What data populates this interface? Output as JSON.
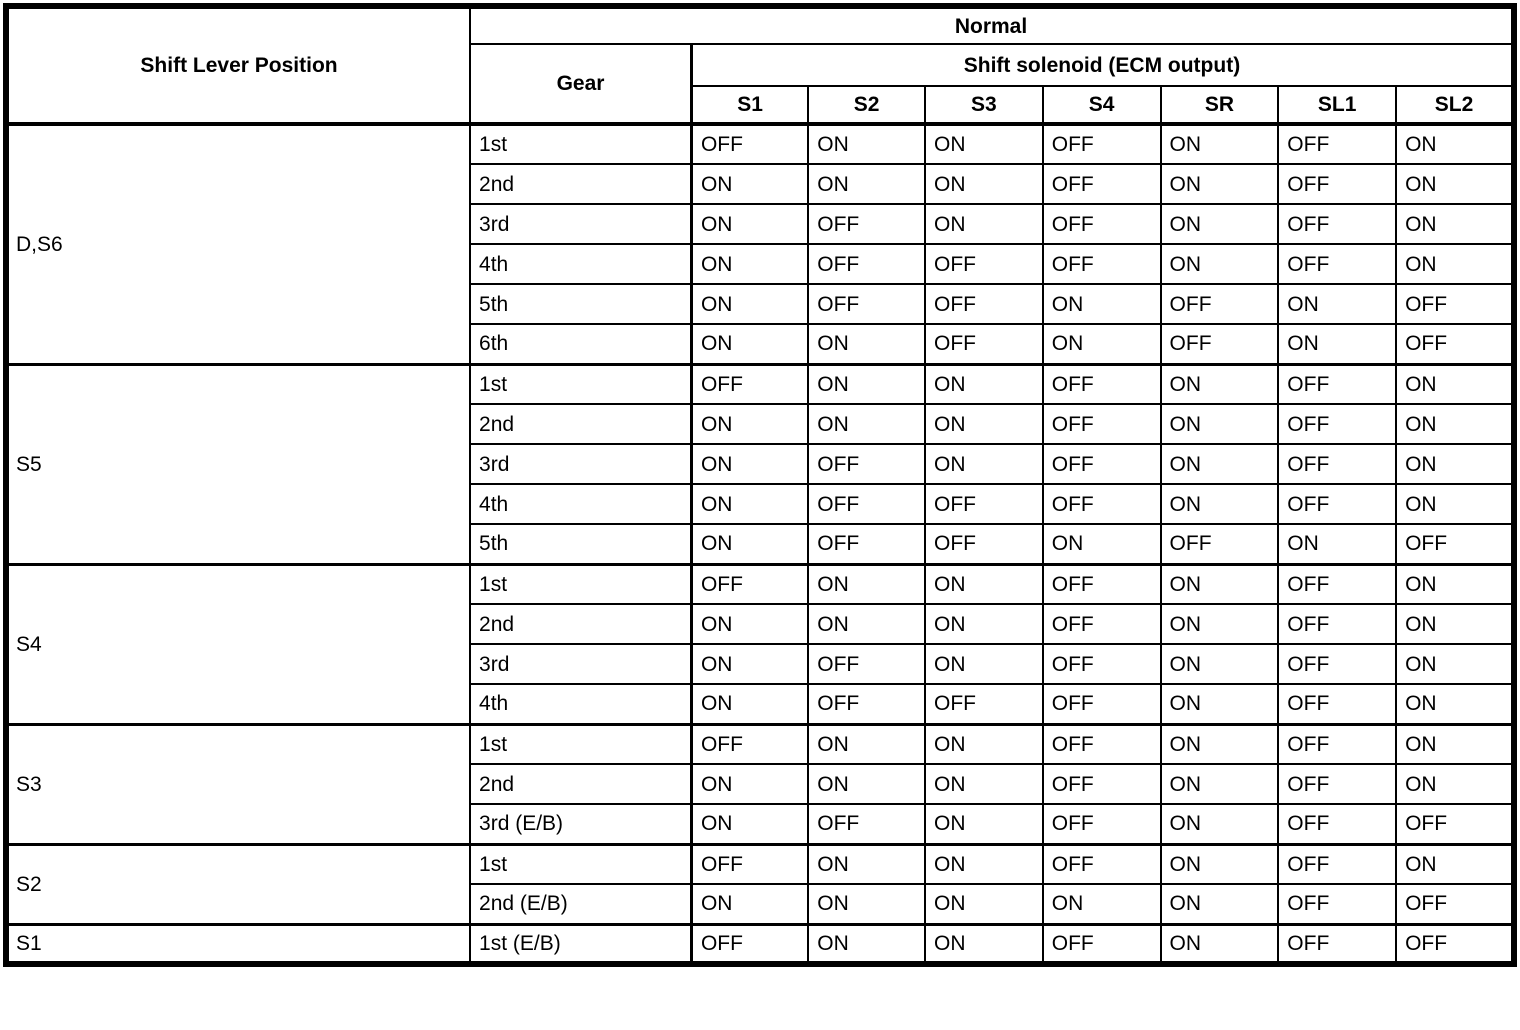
{
  "colors": {
    "border": "#000000",
    "background": "#ffffff",
    "text": "#000000"
  },
  "table": {
    "header": {
      "shift_lever_position": "Shift Lever Position",
      "normal": "Normal",
      "gear": "Gear",
      "shift_solenoid": "Shift solenoid (ECM output)",
      "solenoids": [
        "S1",
        "S2",
        "S3",
        "S4",
        "SR",
        "SL1",
        "SL2"
      ]
    },
    "sections": [
      {
        "position": "D,S6",
        "rows": [
          {
            "gear": "1st",
            "states": [
              "OFF",
              "ON",
              "ON",
              "OFF",
              "ON",
              "OFF",
              "ON"
            ]
          },
          {
            "gear": "2nd",
            "states": [
              "ON",
              "ON",
              "ON",
              "OFF",
              "ON",
              "OFF",
              "ON"
            ]
          },
          {
            "gear": "3rd",
            "states": [
              "ON",
              "OFF",
              "ON",
              "OFF",
              "ON",
              "OFF",
              "ON"
            ]
          },
          {
            "gear": "4th",
            "states": [
              "ON",
              "OFF",
              "OFF",
              "OFF",
              "ON",
              "OFF",
              "ON"
            ]
          },
          {
            "gear": "5th",
            "states": [
              "ON",
              "OFF",
              "OFF",
              "ON",
              "OFF",
              "ON",
              "OFF"
            ]
          },
          {
            "gear": "6th",
            "states": [
              "ON",
              "ON",
              "OFF",
              "ON",
              "OFF",
              "ON",
              "OFF"
            ]
          }
        ]
      },
      {
        "position": "S5",
        "rows": [
          {
            "gear": "1st",
            "states": [
              "OFF",
              "ON",
              "ON",
              "OFF",
              "ON",
              "OFF",
              "ON"
            ]
          },
          {
            "gear": "2nd",
            "states": [
              "ON",
              "ON",
              "ON",
              "OFF",
              "ON",
              "OFF",
              "ON"
            ]
          },
          {
            "gear": "3rd",
            "states": [
              "ON",
              "OFF",
              "ON",
              "OFF",
              "ON",
              "OFF",
              "ON"
            ]
          },
          {
            "gear": "4th",
            "states": [
              "ON",
              "OFF",
              "OFF",
              "OFF",
              "ON",
              "OFF",
              "ON"
            ]
          },
          {
            "gear": "5th",
            "states": [
              "ON",
              "OFF",
              "OFF",
              "ON",
              "OFF",
              "ON",
              "OFF"
            ]
          }
        ]
      },
      {
        "position": "S4",
        "rows": [
          {
            "gear": "1st",
            "states": [
              "OFF",
              "ON",
              "ON",
              "OFF",
              "ON",
              "OFF",
              "ON"
            ]
          },
          {
            "gear": "2nd",
            "states": [
              "ON",
              "ON",
              "ON",
              "OFF",
              "ON",
              "OFF",
              "ON"
            ]
          },
          {
            "gear": "3rd",
            "states": [
              "ON",
              "OFF",
              "ON",
              "OFF",
              "ON",
              "OFF",
              "ON"
            ]
          },
          {
            "gear": "4th",
            "states": [
              "ON",
              "OFF",
              "OFF",
              "OFF",
              "ON",
              "OFF",
              "ON"
            ]
          }
        ]
      },
      {
        "position": "S3",
        "rows": [
          {
            "gear": "1st",
            "states": [
              "OFF",
              "ON",
              "ON",
              "OFF",
              "ON",
              "OFF",
              "ON"
            ]
          },
          {
            "gear": "2nd",
            "states": [
              "ON",
              "ON",
              "ON",
              "OFF",
              "ON",
              "OFF",
              "ON"
            ]
          },
          {
            "gear": "3rd (E/B)",
            "states": [
              "ON",
              "OFF",
              "ON",
              "OFF",
              "ON",
              "OFF",
              "OFF"
            ]
          }
        ]
      },
      {
        "position": "S2",
        "rows": [
          {
            "gear": "1st",
            "states": [
              "OFF",
              "ON",
              "ON",
              "OFF",
              "ON",
              "OFF",
              "ON"
            ]
          },
          {
            "gear": "2nd (E/B)",
            "states": [
              "ON",
              "ON",
              "ON",
              "ON",
              "ON",
              "OFF",
              "OFF"
            ]
          }
        ]
      },
      {
        "position": "S1",
        "rows": [
          {
            "gear": "1st (E/B)",
            "states": [
              "OFF",
              "ON",
              "ON",
              "OFF",
              "ON",
              "OFF",
              "OFF"
            ]
          }
        ]
      }
    ]
  }
}
